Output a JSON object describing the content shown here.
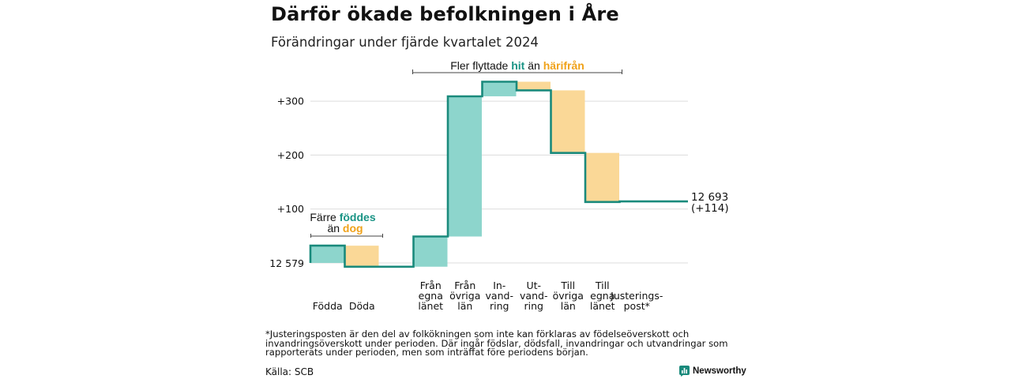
{
  "header": {
    "title": "Därför ökade befolkningen i Åre",
    "subtitle": "Förändringar under fjärde kvartalet 2024"
  },
  "colors": {
    "increase": "#8dd5cc",
    "decrease": "#fad897",
    "line": "#1a8a7c",
    "hit_text": "#1a9485",
    "dit_text": "#f0a21a",
    "grid": "#dcdcdc"
  },
  "chart_data": {
    "type": "waterfall",
    "start": 12579,
    "start_label": "12 579",
    "end_label": "12 693",
    "end_change_label": "(+114)",
    "ylim": [
      -8,
      340
    ],
    "yticks": [
      {
        "value": 100,
        "label": "+100"
      },
      {
        "value": 200,
        "label": "+200"
      },
      {
        "value": 300,
        "label": "+300"
      }
    ],
    "steps": [
      {
        "label": [
          "Födda"
        ],
        "change": 32
      },
      {
        "label": [
          "Döda"
        ],
        "change": -39
      },
      {
        "label": [],
        "change": 0
      },
      {
        "label": [
          "Från",
          "egna",
          "länet"
        ],
        "change": 56
      },
      {
        "label": [
          "Från",
          "övriga",
          "län"
        ],
        "change": 260
      },
      {
        "label": [
          "In-",
          "vand-",
          "ring"
        ],
        "change": 27
      },
      {
        "label": [
          "Ut-",
          "vand-",
          "ring"
        ],
        "change": -16
      },
      {
        "label": [
          "Till",
          "övriga",
          "län"
        ],
        "change": -116
      },
      {
        "label": [
          "Till",
          "egna",
          "länet"
        ],
        "change": -91
      },
      {
        "label": [
          "Justerings-",
          "post*"
        ],
        "change": 1
      }
    ],
    "annotations": {
      "births": {
        "line1_pre": "Färre ",
        "line1_hi": "föddes",
        "line2_pre": "än ",
        "line2_hi": "dog"
      },
      "migration": {
        "pre": "Fler flyttade ",
        "hit": "hit",
        "mid": " än ",
        "dit": "härifrån"
      }
    }
  },
  "footer": {
    "footnote": "*Justeringsposten är den del av folkökningen som inte kan förklaras av födelseöverskott och invandringsöverskott under perioden. Där ingår födslar, dödsfall, invandringar och utvandringar som rapporterats under perioden, men som inträffat före periodens början.",
    "source": "Källa: SCB",
    "brand": "Newsworthy",
    "brand_icon": "newsworthy-bar-icon"
  }
}
